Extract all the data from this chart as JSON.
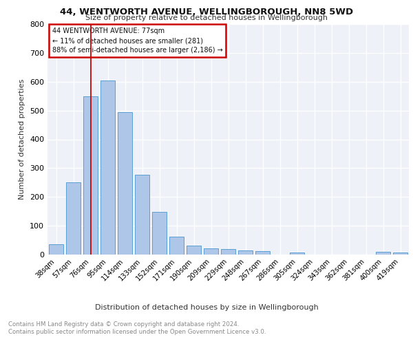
{
  "title": "44, WENTWORTH AVENUE, WELLINGBOROUGH, NN8 5WD",
  "subtitle": "Size of property relative to detached houses in Wellingborough",
  "xlabel": "Distribution of detached houses by size in Wellingborough",
  "ylabel": "Number of detached properties",
  "categories": [
    "38sqm",
    "57sqm",
    "76sqm",
    "95sqm",
    "114sqm",
    "133sqm",
    "152sqm",
    "171sqm",
    "190sqm",
    "209sqm",
    "229sqm",
    "248sqm",
    "267sqm",
    "286sqm",
    "305sqm",
    "324sqm",
    "343sqm",
    "362sqm",
    "381sqm",
    "400sqm",
    "419sqm"
  ],
  "values": [
    35,
    250,
    550,
    605,
    495,
    278,
    148,
    62,
    32,
    22,
    18,
    15,
    12,
    0,
    8,
    0,
    0,
    0,
    0,
    10,
    8
  ],
  "bar_color": "#aec6e8",
  "bar_edge_color": "#5a9fd4",
  "vline_index": 2,
  "annotation_text_line1": "44 WENTWORTH AVENUE: 77sqm",
  "annotation_text_line2": "← 11% of detached houses are smaller (281)",
  "annotation_text_line3": "88% of semi-detached houses are larger (2,186) →",
  "annotation_box_color": "#cc0000",
  "annotation_box_fill": "#ffffff",
  "vline_color": "#cc0000",
  "background_color": "#eef2f8",
  "grid_color": "#ffffff",
  "footer_text": "Contains HM Land Registry data © Crown copyright and database right 2024.\nContains public sector information licensed under the Open Government Licence v3.0.",
  "ylim": [
    0,
    800
  ],
  "yticks": [
    0,
    100,
    200,
    300,
    400,
    500,
    600,
    700,
    800
  ]
}
